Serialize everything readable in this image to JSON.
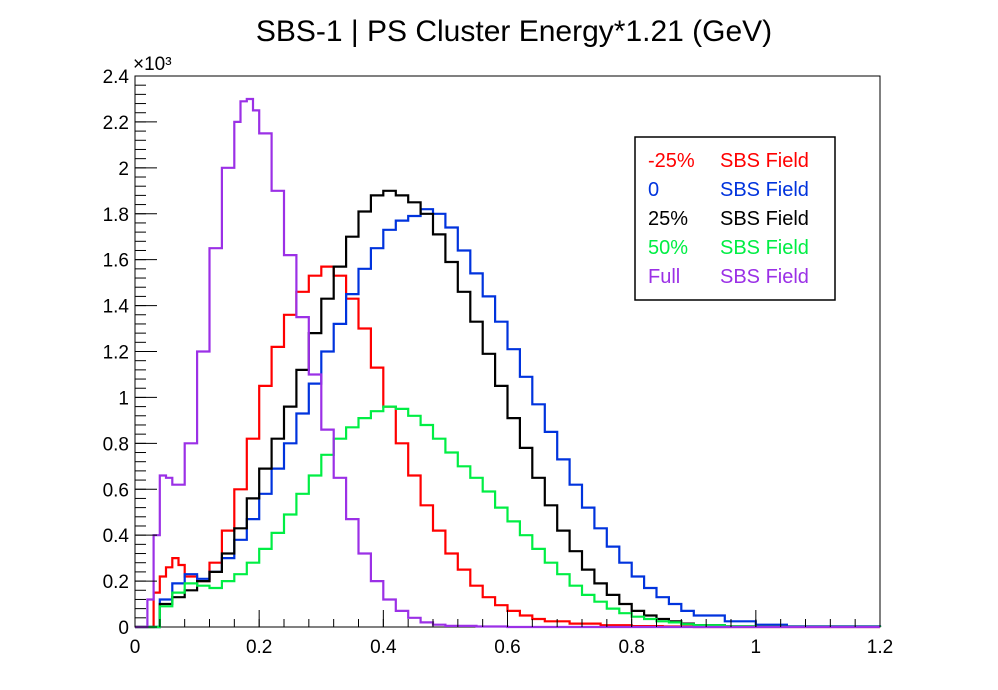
{
  "colors": {
    "m25": "#ff0000",
    "zero": "#0033dd",
    "p25": "#000000",
    "p50": "#00ee44",
    "full": "#9b30e6"
  },
  "chart_data": {
    "type": "line",
    "title": "SBS-1 | PS Cluster Energy*1.21 (GeV)",
    "xlabel": "",
    "ylabel": "",
    "xlim": [
      0,
      1.2
    ],
    "ylim": [
      0,
      2400
    ],
    "y_multiplier_label": "×10³",
    "x_ticks": [
      {
        "v": 0,
        "label": "0"
      },
      {
        "v": 0.2,
        "label": "0.2"
      },
      {
        "v": 0.4,
        "label": "0.4"
      },
      {
        "v": 0.6,
        "label": "0.6"
      },
      {
        "v": 0.8,
        "label": "0.8"
      },
      {
        "v": 1.0,
        "label": "1"
      },
      {
        "v": 1.2,
        "label": "1.2"
      }
    ],
    "y_ticks": [
      {
        "v": 0,
        "label": "0"
      },
      {
        "v": 200,
        "label": "0.2"
      },
      {
        "v": 400,
        "label": "0.4"
      },
      {
        "v": 600,
        "label": "0.6"
      },
      {
        "v": 800,
        "label": "0.8"
      },
      {
        "v": 1000,
        "label": "1"
      },
      {
        "v": 1200,
        "label": "1.2"
      },
      {
        "v": 1400,
        "label": "1.4"
      },
      {
        "v": 1600,
        "label": "1.6"
      },
      {
        "v": 1800,
        "label": "1.8"
      },
      {
        "v": 2000,
        "label": "2"
      },
      {
        "v": 2200,
        "label": "2.2"
      },
      {
        "v": 2400,
        "label": "2.4"
      }
    ],
    "legend_position": "top-right",
    "legend": [
      {
        "pct": "-25%",
        "field": "SBS Field",
        "color_key": "m25"
      },
      {
        "pct": "0",
        "field": "SBS Field",
        "color_key": "zero"
      },
      {
        "pct": "25%",
        "field": "SBS Field",
        "color_key": "p25"
      },
      {
        "pct": "50%",
        "field": "SBS Field",
        "color_key": "p50"
      },
      {
        "pct": "Full",
        "field": "SBS Field",
        "color_key": "full"
      }
    ],
    "series": [
      {
        "color_key": "m25",
        "x": [
          0.0,
          0.02,
          0.03,
          0.04,
          0.05,
          0.06,
          0.07,
          0.08,
          0.1,
          0.12,
          0.14,
          0.16,
          0.18,
          0.2,
          0.22,
          0.24,
          0.26,
          0.28,
          0.3,
          0.32,
          0.34,
          0.36,
          0.38,
          0.4,
          0.42,
          0.44,
          0.46,
          0.48,
          0.5,
          0.52,
          0.54,
          0.56,
          0.58,
          0.6,
          0.62,
          0.64,
          0.66,
          0.7,
          0.75,
          0.8,
          0.85,
          0.9,
          1.0,
          1.2
        ],
        "y": [
          0,
          0,
          150,
          220,
          260,
          300,
          270,
          220,
          200,
          280,
          420,
          600,
          820,
          1050,
          1220,
          1360,
          1460,
          1530,
          1570,
          1530,
          1430,
          1300,
          1130,
          960,
          800,
          660,
          530,
          420,
          320,
          250,
          180,
          130,
          95,
          70,
          50,
          35,
          25,
          15,
          8,
          4,
          2,
          0,
          0,
          0
        ]
      },
      {
        "color_key": "zero",
        "x": [
          0.0,
          0.02,
          0.04,
          0.06,
          0.08,
          0.1,
          0.12,
          0.14,
          0.16,
          0.18,
          0.2,
          0.22,
          0.24,
          0.26,
          0.28,
          0.3,
          0.32,
          0.34,
          0.36,
          0.38,
          0.4,
          0.42,
          0.44,
          0.46,
          0.48,
          0.5,
          0.52,
          0.54,
          0.56,
          0.58,
          0.6,
          0.62,
          0.64,
          0.66,
          0.68,
          0.7,
          0.72,
          0.74,
          0.76,
          0.78,
          0.8,
          0.82,
          0.84,
          0.86,
          0.88,
          0.9,
          0.95,
          1.0,
          1.05,
          1.2
        ],
        "y": [
          0,
          0,
          120,
          190,
          230,
          210,
          240,
          300,
          380,
          470,
          580,
          690,
          800,
          930,
          1060,
          1200,
          1320,
          1450,
          1560,
          1650,
          1730,
          1770,
          1790,
          1820,
          1800,
          1740,
          1640,
          1540,
          1440,
          1330,
          1210,
          1090,
          970,
          850,
          730,
          620,
          520,
          430,
          350,
          280,
          220,
          170,
          130,
          100,
          70,
          50,
          25,
          10,
          3,
          0
        ]
      },
      {
        "color_key": "p25",
        "x": [
          0.0,
          0.02,
          0.04,
          0.06,
          0.08,
          0.1,
          0.12,
          0.14,
          0.16,
          0.18,
          0.2,
          0.22,
          0.24,
          0.26,
          0.28,
          0.3,
          0.32,
          0.34,
          0.36,
          0.38,
          0.4,
          0.42,
          0.44,
          0.46,
          0.48,
          0.5,
          0.52,
          0.54,
          0.56,
          0.58,
          0.6,
          0.62,
          0.64,
          0.66,
          0.68,
          0.7,
          0.72,
          0.74,
          0.76,
          0.78,
          0.8,
          0.82,
          0.84,
          0.86,
          0.88,
          0.9,
          0.95,
          1.0,
          1.2
        ],
        "y": [
          0,
          0,
          100,
          130,
          160,
          200,
          240,
          320,
          430,
          560,
          690,
          820,
          960,
          1120,
          1280,
          1430,
          1570,
          1700,
          1810,
          1880,
          1900,
          1880,
          1850,
          1800,
          1710,
          1590,
          1460,
          1330,
          1190,
          1050,
          910,
          780,
          650,
          530,
          420,
          330,
          250,
          190,
          140,
          100,
          70,
          50,
          35,
          25,
          15,
          8,
          3,
          1,
          0
        ]
      },
      {
        "color_key": "p50",
        "x": [
          0.0,
          0.02,
          0.04,
          0.06,
          0.08,
          0.1,
          0.12,
          0.14,
          0.16,
          0.18,
          0.2,
          0.22,
          0.24,
          0.26,
          0.28,
          0.3,
          0.32,
          0.34,
          0.36,
          0.38,
          0.4,
          0.42,
          0.44,
          0.46,
          0.48,
          0.5,
          0.52,
          0.54,
          0.56,
          0.58,
          0.6,
          0.62,
          0.64,
          0.66,
          0.68,
          0.7,
          0.72,
          0.74,
          0.76,
          0.78,
          0.8,
          0.82,
          0.84,
          0.86,
          0.88,
          0.9,
          0.95,
          1.0,
          1.2
        ],
        "y": [
          0,
          0,
          90,
          150,
          190,
          180,
          170,
          200,
          230,
          280,
          340,
          410,
          490,
          580,
          660,
          750,
          820,
          870,
          910,
          940,
          960,
          950,
          920,
          880,
          820,
          760,
          700,
          650,
          590,
          520,
          460,
          400,
          340,
          280,
          230,
          180,
          140,
          110,
          80,
          60,
          45,
          35,
          25,
          20,
          12,
          8,
          3,
          1,
          0
        ]
      },
      {
        "color_key": "full",
        "x": [
          0.0,
          0.01,
          0.02,
          0.03,
          0.04,
          0.05,
          0.06,
          0.08,
          0.1,
          0.12,
          0.14,
          0.16,
          0.17,
          0.18,
          0.19,
          0.2,
          0.22,
          0.24,
          0.26,
          0.28,
          0.3,
          0.32,
          0.34,
          0.36,
          0.38,
          0.4,
          0.42,
          0.44,
          0.46,
          0.48,
          0.5,
          0.55,
          0.6,
          1.2
        ],
        "y": [
          0,
          0,
          120,
          400,
          660,
          650,
          620,
          800,
          1200,
          1650,
          2000,
          2200,
          2290,
          2300,
          2250,
          2150,
          1900,
          1620,
          1350,
          1100,
          860,
          650,
          470,
          320,
          200,
          120,
          70,
          40,
          20,
          10,
          5,
          2,
          0,
          0
        ]
      }
    ]
  }
}
